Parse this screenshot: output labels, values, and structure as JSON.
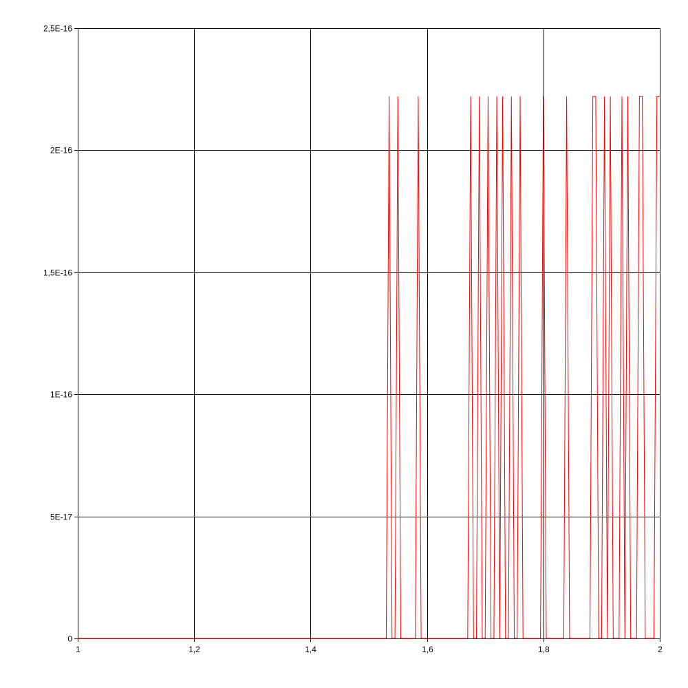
{
  "chart_data": {
    "type": "line",
    "title": "",
    "xlabel": "",
    "ylabel": "",
    "xlim": [
      1,
      2
    ],
    "ylim": [
      0,
      2.5e-16
    ],
    "grid": true,
    "x_ticks": [
      1,
      1.2,
      1.4,
      1.6,
      1.8,
      2
    ],
    "x_tick_labels": [
      "1",
      "1,2",
      "1,4",
      "1,6",
      "1,8",
      "2"
    ],
    "y_ticks": [
      0,
      5e-17,
      1e-16,
      1.5e-16,
      2e-16,
      2.5e-16
    ],
    "y_tick_labels": [
      "0",
      "5E-17",
      "1E-16",
      "1,5E-16",
      "2E-16",
      "2,5E-16"
    ],
    "series": [
      {
        "color": "#ff0000",
        "x": [
          1,
          1.53,
          1.535,
          1.54,
          1.545,
          1.55,
          1.555,
          1.58,
          1.585,
          1.59,
          1.67,
          1.675,
          1.68,
          1.685,
          1.69,
          1.695,
          1.7,
          1.705,
          1.71,
          1.715,
          1.72,
          1.725,
          1.73,
          1.735,
          1.74,
          1.745,
          1.75,
          1.755,
          1.76,
          1.765,
          1.795,
          1.8,
          1.805,
          1.835,
          1.84,
          1.845,
          1.88,
          1.885,
          1.89,
          1.895,
          1.9,
          1.905,
          1.91,
          1.915,
          1.92,
          1.93,
          1.935,
          1.94,
          1.945,
          1.95,
          1.96,
          1.965,
          1.97,
          1.975,
          1.99,
          1.995,
          2
        ],
        "y": [
          0,
          0,
          2.22e-16,
          0,
          0,
          2.22e-16,
          0,
          0,
          2.22e-16,
          0,
          0,
          2.22e-16,
          0,
          0,
          2.22e-16,
          0,
          0,
          2.22e-16,
          0,
          0,
          2.22e-16,
          0,
          2.22e-16,
          0,
          0,
          2.22e-16,
          0,
          0,
          2.22e-16,
          0,
          0,
          2.22e-16,
          0,
          0,
          2.22e-16,
          0,
          0,
          2.22e-16,
          2.22e-16,
          0,
          0,
          2.22e-16,
          0,
          2.22e-16,
          0,
          0,
          2.22e-16,
          0,
          2.22e-16,
          0,
          0,
          2.22e-16,
          2.22e-16,
          0,
          0,
          2.22e-16,
          2.22e-16
        ]
      }
    ]
  }
}
